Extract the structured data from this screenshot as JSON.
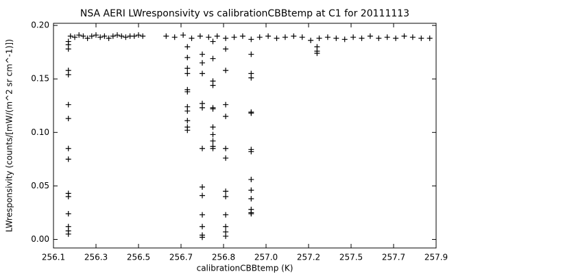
{
  "chart_data": {
    "type": "scatter",
    "title": "NSA AERI LWresponsivity vs calibrationCBBtemp at C1 for 20111113",
    "x_label": "calibrationCBBtemp (K)",
    "y_label": "LWresponsivity (counts/[mW/(m^2 sr cm^-1)])",
    "color": "#000000",
    "xlim": [
      256.05,
      257.85
    ],
    "ylim": [
      -0.008,
      0.202
    ],
    "xticks": [
      {
        "value": 256.05,
        "label": "256.1"
      },
      {
        "value": 256.25,
        "label": "256.3"
      },
      {
        "value": 256.45,
        "label": "256.5"
      },
      {
        "value": 256.65,
        "label": "256.7"
      },
      {
        "value": 256.85,
        "label": "256.8"
      },
      {
        "value": 257.05,
        "label": "257.0"
      },
      {
        "value": 257.25,
        "label": "257.2"
      },
      {
        "value": 257.45,
        "label": "257.5"
      },
      {
        "value": 257.65,
        "label": "257.7"
      },
      {
        "value": 257.85,
        "label": "257.9"
      }
    ],
    "yticks": [
      {
        "value": 0,
        "label": "0.00"
      },
      0.05,
      {
        "value": 0.1,
        "label": "0.10"
      },
      0.15,
      {
        "value": 0.2,
        "label": "0.20"
      }
    ],
    "x": [
      256.12,
      256.12,
      256.12,
      256.12,
      256.12,
      256.12,
      256.12,
      256.12,
      256.12,
      256.12,
      256.12,
      256.12,
      256.12,
      256.12,
      256.12,
      256.68,
      256.68,
      256.68,
      256.68,
      256.68,
      256.68,
      256.68,
      256.68,
      256.68,
      256.68,
      256.68,
      256.75,
      256.75,
      256.75,
      256.75,
      256.75,
      256.75,
      256.75,
      256.75,
      256.75,
      256.75,
      256.75,
      256.75,
      256.8,
      256.8,
      256.8,
      256.8,
      256.8,
      256.8,
      256.8,
      256.8,
      256.8,
      256.8,
      256.8,
      256.86,
      256.86,
      256.86,
      256.86,
      256.86,
      256.86,
      256.86,
      256.86,
      256.86,
      256.86,
      256.86,
      256.86,
      256.98,
      256.98,
      256.98,
      256.98,
      256.98,
      256.98,
      256.98,
      256.98,
      256.98,
      256.98,
      256.98,
      256.98,
      256.98,
      257.29,
      257.29,
      257.29,
      256.13,
      256.15,
      256.17,
      256.19,
      256.21,
      256.23,
      256.25,
      256.27,
      256.29,
      256.31,
      256.33,
      256.35,
      256.37,
      256.39,
      256.41,
      256.43,
      256.45,
      256.47,
      256.58,
      256.62,
      256.66,
      256.7,
      256.74,
      256.78,
      256.82,
      256.86,
      256.9,
      256.94,
      256.98,
      257.02,
      257.06,
      257.1,
      257.14,
      257.18,
      257.22,
      257.26,
      257.3,
      257.34,
      257.38,
      257.42,
      257.46,
      257.5,
      257.54,
      257.58,
      257.62,
      257.66,
      257.7,
      257.74,
      257.78,
      257.82
    ],
    "y": [
      0.185,
      0.182,
      0.178,
      0.158,
      0.154,
      0.126,
      0.113,
      0.085,
      0.075,
      0.043,
      0.04,
      0.024,
      0.012,
      0.008,
      0.005,
      0.18,
      0.17,
      0.16,
      0.155,
      0.14,
      0.138,
      0.124,
      0.12,
      0.111,
      0.105,
      0.102,
      0.173,
      0.165,
      0.155,
      0.127,
      0.123,
      0.085,
      0.049,
      0.041,
      0.023,
      0.012,
      0.004,
      0.002,
      0.185,
      0.169,
      0.148,
      0.144,
      0.123,
      0.122,
      0.105,
      0.098,
      0.092,
      0.087,
      0.085,
      0.178,
      0.158,
      0.126,
      0.115,
      0.085,
      0.076,
      0.045,
      0.04,
      0.023,
      0.012,
      0.007,
      0.003,
      0.173,
      0.155,
      0.151,
      0.119,
      0.118,
      0.084,
      0.082,
      0.056,
      0.046,
      0.038,
      0.028,
      0.025,
      0.024,
      0.18,
      0.176,
      0.174,
      0.19,
      0.189,
      0.191,
      0.19,
      0.188,
      0.19,
      0.191,
      0.189,
      0.19,
      0.188,
      0.19,
      0.191,
      0.19,
      0.189,
      0.19,
      0.19,
      0.191,
      0.19,
      0.19,
      0.189,
      0.191,
      0.188,
      0.19,
      0.189,
      0.19,
      0.188,
      0.189,
      0.19,
      0.187,
      0.189,
      0.19,
      0.188,
      0.189,
      0.19,
      0.189,
      0.186,
      0.188,
      0.189,
      0.188,
      0.187,
      0.189,
      0.188,
      0.19,
      0.188,
      0.189,
      0.188,
      0.19,
      0.189,
      0.188,
      0.188
    ]
  }
}
